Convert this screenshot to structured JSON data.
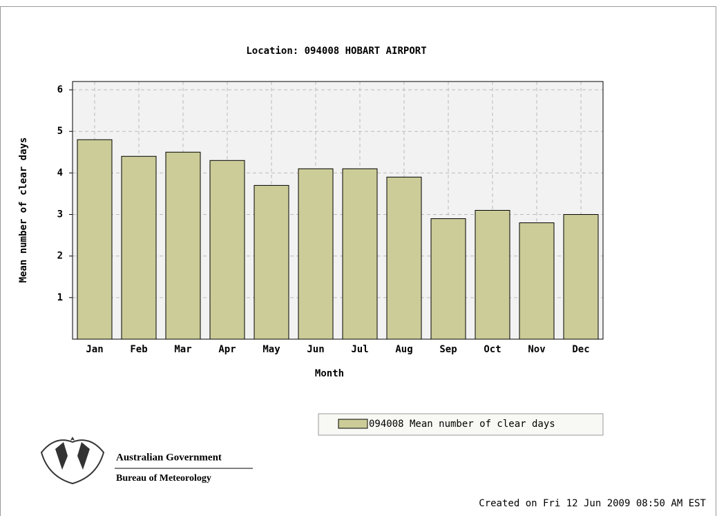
{
  "chart_data": {
    "type": "bar",
    "title": "Location: 094008 HOBART AIRPORT",
    "x_label": "Month",
    "y_label": "Mean number of clear days",
    "categories": [
      "Jan",
      "Feb",
      "Mar",
      "Apr",
      "May",
      "Jun",
      "Jul",
      "Aug",
      "Sep",
      "Oct",
      "Nov",
      "Dec"
    ],
    "series": [
      {
        "name": "094008 Mean number of clear days",
        "color": "#cccc99",
        "values": [
          4.8,
          4.4,
          4.5,
          4.3,
          3.7,
          4.1,
          4.1,
          3.9,
          2.9,
          3.1,
          2.8,
          3.0
        ]
      }
    ],
    "ylim": [
      0,
      6.2
    ],
    "yticks": [
      1,
      2,
      3,
      4,
      5,
      6
    ],
    "grid": true,
    "legend": "bottom-right"
  },
  "branding": {
    "government": "Australian Government",
    "agency": "Bureau of Meteorology"
  },
  "footer": "Created on Fri 12 Jun 2009 08:50 AM EST"
}
